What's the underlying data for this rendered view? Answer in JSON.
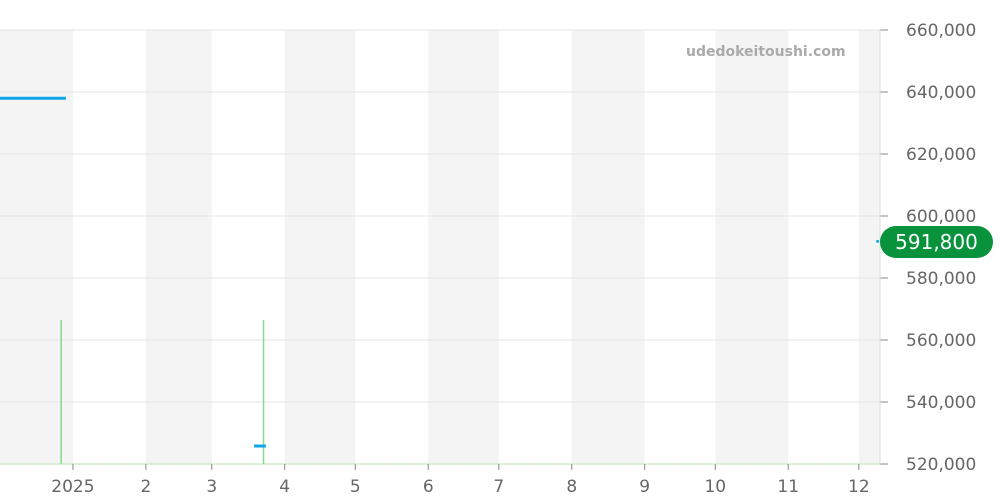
{
  "watermark": "udedokeitoushi.com",
  "chart_data": {
    "type": "line",
    "x_domain": [
      "2024-12-01",
      "2025-12-10"
    ],
    "ylim": [
      520000,
      660000
    ],
    "y_ticks": [
      520000,
      540000,
      560000,
      580000,
      600000,
      620000,
      640000,
      660000
    ],
    "y_tick_labels": [
      "520,000",
      "540,000",
      "560,000",
      "580,000",
      "600,000",
      "620,000",
      "640,000",
      "660,000"
    ],
    "y_axis_position": "right",
    "x_ticks": [
      "2025-01-01",
      "2025-02-01",
      "2025-03-01",
      "2025-04-01",
      "2025-05-01",
      "2025-06-01",
      "2025-07-01",
      "2025-08-01",
      "2025-09-01",
      "2025-10-01",
      "2025-11-01",
      "2025-12-01"
    ],
    "x_tick_labels": [
      "2025",
      "2",
      "3",
      "4",
      "5",
      "6",
      "7",
      "8",
      "9",
      "10",
      "11",
      "12"
    ],
    "alternating_month_shading": true,
    "grid": true,
    "price_segments": [
      {
        "x": [
          "2024-12-01",
          "2024-12-29"
        ],
        "y": [
          638000,
          638000
        ]
      },
      {
        "x": [
          "2025-03-19",
          "2025-03-24"
        ],
        "y": [
          525800,
          525800
        ]
      }
    ],
    "latest": {
      "x": "2025-12-09",
      "y": 591800,
      "label": "591,800"
    },
    "volume_bars": [
      {
        "x": "2024-12-27",
        "relative": 1
      },
      {
        "x": "2025-03-23",
        "relative": 1
      }
    ],
    "colors": {
      "price": "#0ea5e9",
      "volume": "#86d98f",
      "badge": "#07923b",
      "shade": "#f4f4f4",
      "grid": "#e4e4e4"
    }
  }
}
